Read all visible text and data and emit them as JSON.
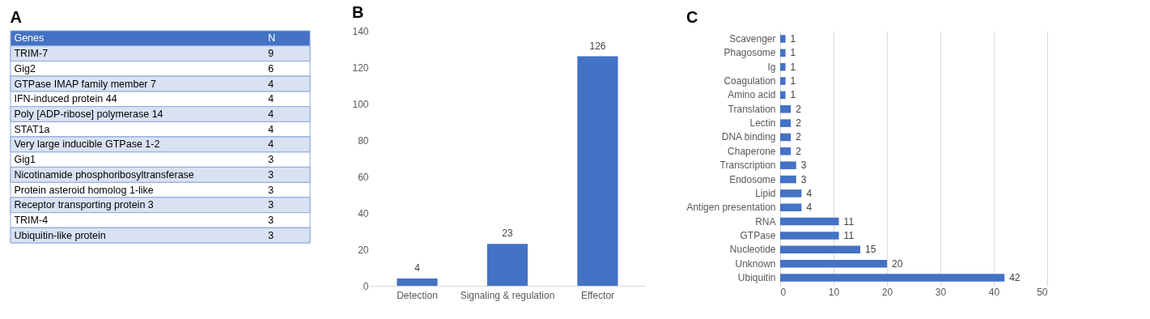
{
  "chart_data": [
    {
      "type": "other",
      "title": "A",
      "xlabel": "Genes",
      "ylabel": "N",
      "categories": [
        "TRIM-7",
        "Gig2",
        "GTPase IMAP family member 7",
        "IFN-induced protein 44",
        "Poly [ADP-ribose] polymerase 14",
        "STAT1a",
        "Very large inducible GTPase 1-2",
        "Gig1",
        "Nicotinamide phosphoribosyltransferase",
        "Protein asteroid homolog 1-like",
        "Receptor transporting protein 3",
        "TRIM-4",
        "Ubiquitin-like protein"
      ],
      "values": [
        9,
        6,
        4,
        4,
        4,
        4,
        4,
        3,
        3,
        3,
        3,
        3,
        3
      ],
      "data_labels": true
    },
    {
      "type": "bar",
      "title": "B",
      "categories": [
        "Detection",
        "Signaling & regulation",
        "Effector"
      ],
      "values": [
        4,
        23,
        126
      ],
      "color": "#4472c4",
      "ylim": [
        0,
        140
      ],
      "yticks": [
        0,
        20,
        40,
        60,
        80,
        100,
        120,
        140
      ],
      "data_labels": true
    },
    {
      "type": "bar",
      "title": "C",
      "orientation": "horizontal",
      "categories": [
        "Scavenger",
        "Phagosome",
        "Ig",
        "Coagulation",
        "Amino acid",
        "Translation",
        "Lectin",
        "DNA binding",
        "Chaperone",
        "Transcription",
        "Endosome",
        "Lipid",
        "Antigen presentation",
        "RNA",
        "GTPase",
        "Nucleotide",
        "Unknown",
        "Ubiquitin"
      ],
      "values": [
        1,
        1,
        1,
        1,
        1,
        2,
        2,
        2,
        2,
        3,
        3,
        4,
        4,
        11,
        11,
        15,
        20,
        42
      ],
      "color": "#4472c4",
      "xlim": [
        0,
        50
      ],
      "xticks": [
        0,
        10,
        20,
        30,
        40,
        50
      ],
      "grid": "x",
      "data_labels": true
    }
  ]
}
